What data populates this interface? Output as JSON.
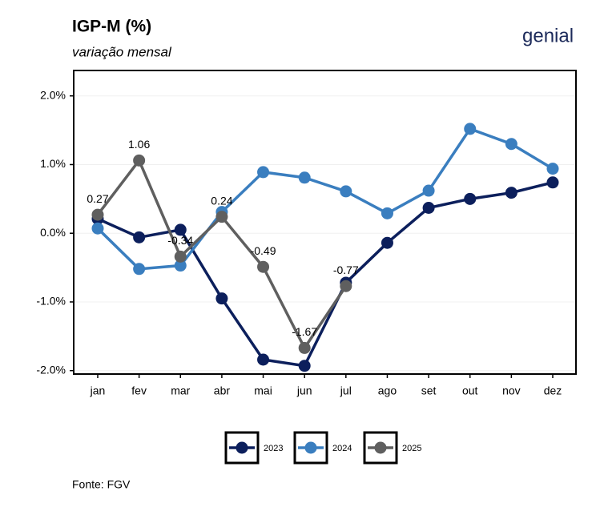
{
  "brand": "genial",
  "source": "Fonte: FGV",
  "chart_data": {
    "type": "line",
    "title": "IGP-M (%)",
    "subtitle": "variação mensal",
    "categories": [
      "jan",
      "fev",
      "mar",
      "abr",
      "mai",
      "jun",
      "jul",
      "ago",
      "set",
      "out",
      "nov",
      "dez"
    ],
    "series": [
      {
        "name": "2023",
        "color": "#0c1f5c",
        "values": [
          0.21,
          -0.06,
          0.05,
          -0.95,
          -1.84,
          -1.93,
          -0.72,
          -0.14,
          0.37,
          0.5,
          0.59,
          0.74
        ]
      },
      {
        "name": "2024",
        "color": "#3a7ebf",
        "values": [
          0.07,
          -0.52,
          -0.47,
          0.31,
          0.89,
          0.81,
          0.61,
          0.29,
          0.62,
          1.52,
          1.3,
          0.94
        ]
      },
      {
        "name": "2025",
        "color": "#5f5f5f",
        "values": [
          0.27,
          1.06,
          -0.34,
          0.24,
          -0.49,
          -1.67,
          -0.77,
          null,
          null,
          null,
          null,
          null
        ],
        "show_labels": true
      }
    ],
    "ylim": [
      -2.05,
      2.37
    ],
    "yticks": [
      {
        "value": -2,
        "label": "-2.0%"
      },
      {
        "value": -1,
        "label": "-1.0%"
      },
      {
        "value": 0,
        "label": "0.0%"
      },
      {
        "value": 1,
        "label": "1.0%"
      },
      {
        "value": 2,
        "label": "2.0%"
      }
    ],
    "grid": true,
    "legend": "bottom"
  }
}
